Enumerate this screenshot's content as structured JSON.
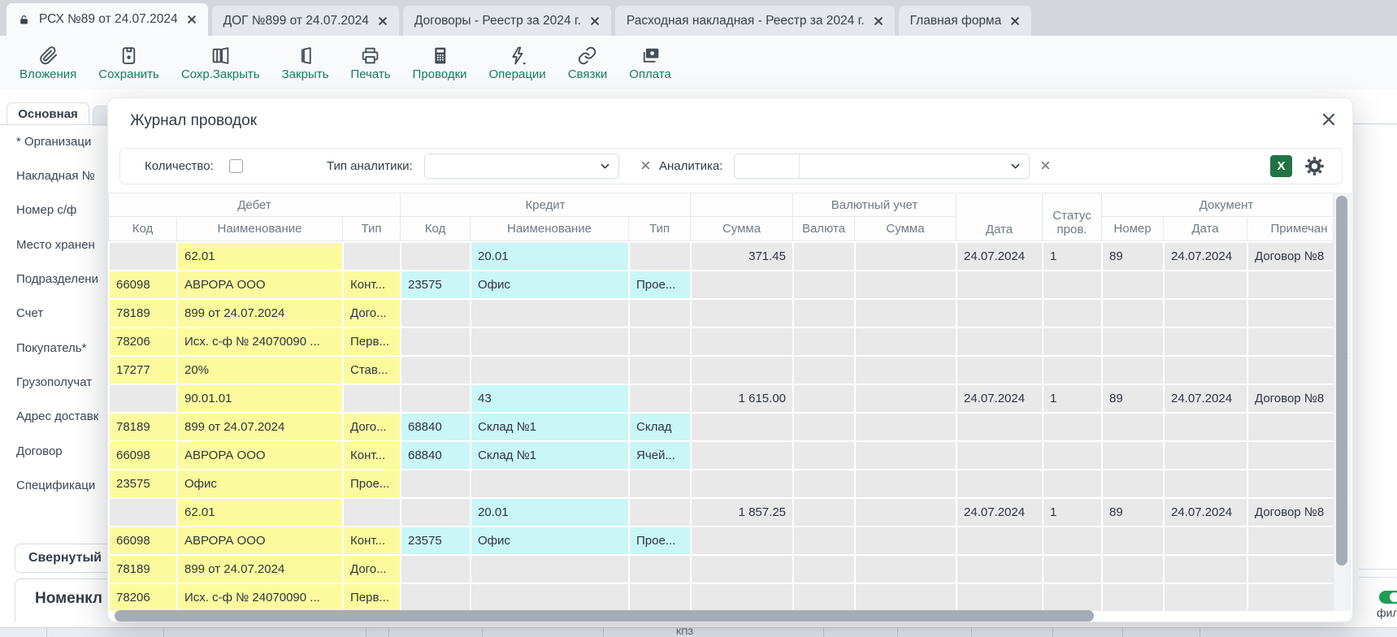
{
  "tabs": [
    {
      "label": "РСХ №89 от 24.07.2024",
      "active": true
    },
    {
      "label": "ДОГ №899 от 24.07.2024",
      "active": false
    },
    {
      "label": "Договоры - Реестр за 2024 г.",
      "active": false
    },
    {
      "label": "Расходная накладная - Реестр за 2024 г.",
      "active": false
    },
    {
      "label": "Главная форма",
      "active": false
    }
  ],
  "toolbar": [
    {
      "name": "attachments",
      "icon": "paperclip",
      "label": "Вложения"
    },
    {
      "name": "save",
      "icon": "floppy",
      "label": "Сохранить"
    },
    {
      "name": "save-close",
      "icon": "door-save",
      "label": "Сохр.Закрыть"
    },
    {
      "name": "close",
      "icon": "door",
      "label": "Закрыть"
    },
    {
      "name": "print",
      "icon": "printer",
      "label": "Печать"
    },
    {
      "name": "postings",
      "icon": "calculator",
      "label": "Проводки"
    },
    {
      "name": "operations",
      "icon": "lightning",
      "label": "Операции"
    },
    {
      "name": "links",
      "icon": "chain",
      "label": "Связки"
    },
    {
      "name": "payment",
      "icon": "banknote",
      "label": "Оплата"
    }
  ],
  "sidebar": {
    "tab": "Основная",
    "fields": [
      "* Организаци",
      "Накладная №",
      "Номер с/ф",
      "Место хранен",
      "Подразделени",
      "Счет",
      "Покупатель*",
      "Грузополучат",
      "Адрес доставк",
      "Договор",
      "Спецификаци"
    ],
    "collapsed_section": "Свернутый",
    "panel_title": "Номенкл"
  },
  "modal": {
    "title": "Журнал проводок",
    "filters": {
      "quantity_label": "Количество:",
      "analytics_type_label": "Тип аналитики:",
      "analytics_label": "Аналитика:",
      "excel_label": "X"
    },
    "table": {
      "groups": {
        "debit": "Дебет",
        "credit": "Кредит",
        "currency": "Валютный учет",
        "document": "Документ"
      },
      "columns": {
        "code": "Код",
        "name": "Наименование",
        "type": "Тип",
        "sum": "Сумма",
        "currency": "Валюта",
        "currency_sum": "Сумма",
        "date": "Дата",
        "status": "Статус пров.",
        "number": "Номер",
        "doc_date": "Дата",
        "note": "Примечан"
      },
      "rows": [
        {
          "d_name": "62.01",
          "c_name": "20.01",
          "sum": "371.45",
          "date": "24.07.2024",
          "status": "1",
          "number": "89",
          "doc_date": "24.07.2024",
          "note": "Договор №8"
        },
        {
          "d_code": "66098",
          "d_name": "АВРОРА ООО",
          "d_type": "Конт...",
          "c_code": "23575",
          "c_name": "Офис",
          "c_type": "Прое..."
        },
        {
          "d_code": "78189",
          "d_name": "899 от 24.07.2024",
          "d_type": "Дого..."
        },
        {
          "d_code": "78206",
          "d_name": "Исх. с-ф № 24070090 ...",
          "d_type": "Перв..."
        },
        {
          "d_code": "17277",
          "d_name": "20%",
          "d_type": "Став..."
        },
        {
          "d_name": "90.01.01",
          "c_name": "43",
          "sum": "1 615.00",
          "date": "24.07.2024",
          "status": "1",
          "number": "89",
          "doc_date": "24.07.2024",
          "note": "Договор №8"
        },
        {
          "d_code": "78189",
          "d_name": "899 от 24.07.2024",
          "d_type": "Дого...",
          "c_code": "68840",
          "c_name": "Склад №1",
          "c_type": "Склад"
        },
        {
          "d_code": "66098",
          "d_name": "АВРОРА ООО",
          "d_type": "Конт...",
          "c_code": "68840",
          "c_name": "Склад №1",
          "c_type": "Ячей..."
        },
        {
          "d_code": "23575",
          "d_name": "Офис",
          "d_type": "Прое..."
        },
        {
          "d_name": "62.01",
          "c_name": "20.01",
          "sum": "1 857.25",
          "date": "24.07.2024",
          "status": "1",
          "number": "89",
          "doc_date": "24.07.2024",
          "note": "Договор №8"
        },
        {
          "d_code": "66098",
          "d_name": "АВРОРА ООО",
          "d_type": "Конт...",
          "c_code": "23575",
          "c_name": "Офис",
          "c_type": "Прое..."
        },
        {
          "d_code": "78189",
          "d_name": "899 от 24.07.2024",
          "d_type": "Дого..."
        },
        {
          "d_code": "78206",
          "d_name": "Исх. с-ф № 24070090 ...",
          "d_type": "Перв..."
        }
      ]
    }
  },
  "background": {
    "toggle_label": "фил",
    "footer_text": "КПЗ"
  },
  "colors": {
    "debit_cell": "#fbfb9e",
    "credit_cell": "#c9f6f6",
    "empty_cell": "#e9e9e9",
    "toolbar_label": "#177b63",
    "excel_green": "#217346",
    "toggle_green": "#1f9d54"
  }
}
